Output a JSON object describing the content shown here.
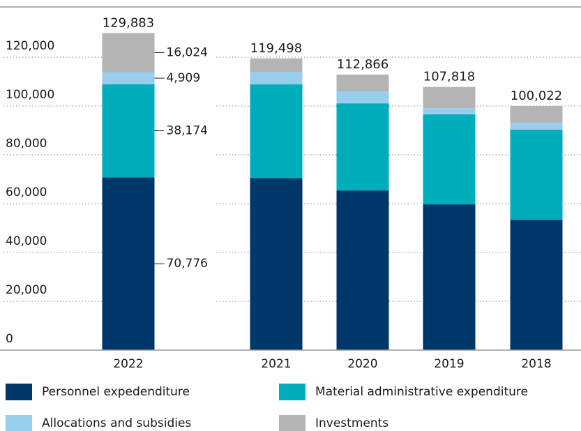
{
  "chart_data": {
    "type": "stacked_bar",
    "categories": [
      "2022",
      "2021",
      "2020",
      "2019",
      "2018"
    ],
    "series": [
      {
        "name": "Personnel expedenditure",
        "color": "#00376b",
        "values": [
          70776,
          70500,
          65400,
          59700,
          53400
        ],
        "value_labels": [
          "70,776",
          null,
          null,
          null,
          null
        ]
      },
      {
        "name": "Material administrative expenditure",
        "color": "#00adbb",
        "values": [
          38174,
          38400,
          35700,
          36900,
          36900
        ],
        "value_labels": [
          "38,174",
          null,
          null,
          null,
          null
        ]
      },
      {
        "name": "Allocations and subsidies",
        "color": "#99cdee",
        "values": [
          4909,
          5100,
          4900,
          2500,
          2800
        ],
        "value_labels": [
          "4,909",
          null,
          null,
          null,
          null
        ]
      },
      {
        "name": "Investments",
        "color": "#b4b4b4",
        "values": [
          16024,
          5498,
          6866,
          8718,
          6922
        ],
        "value_labels": [
          "16,024",
          null,
          null,
          null,
          null
        ]
      }
    ],
    "totals": {
      "values": [
        129883,
        119498,
        112866,
        107818,
        100022
      ],
      "value_labels": [
        "129,883",
        "119,498",
        "112,866",
        "107,818",
        "100,022"
      ]
    },
    "ylim": [
      0,
      140000
    ],
    "yticks": [
      0,
      {
        "value": 20000,
        "label": "20,000"
      },
      {
        "value": 40000,
        "label": "40,000"
      },
      {
        "value": 60000,
        "label": "60,000"
      },
      {
        "value": 80000,
        "label": "80,000"
      },
      {
        "value": 100000,
        "label": "100,000"
      },
      {
        "value": 120000,
        "label": "120,000"
      }
    ],
    "grid": true
  }
}
